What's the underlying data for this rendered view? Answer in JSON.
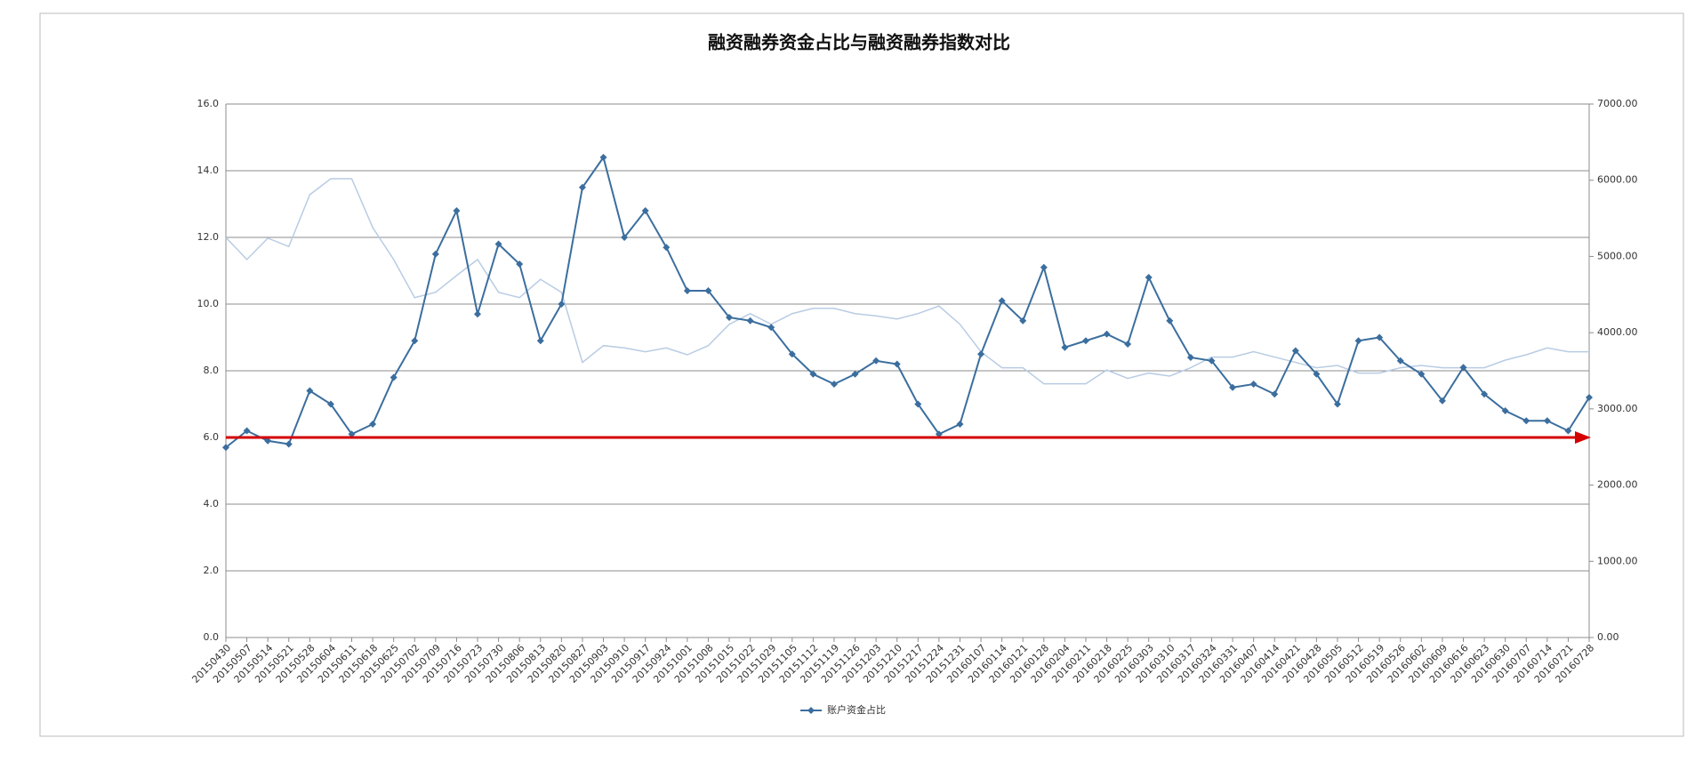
{
  "chart_data": {
    "type": "line",
    "title": "融资融券资金占比与融资融券指数对比",
    "categories": [
      "20150430",
      "20150507",
      "20150514",
      "20150521",
      "20150528",
      "20150604",
      "20150611",
      "20150618",
      "20150625",
      "20150702",
      "20150709",
      "20150716",
      "20150723",
      "20150730",
      "20150806",
      "20150813",
      "20150820",
      "20150827",
      "20150903",
      "20150910",
      "20150917",
      "20150924",
      "20151001",
      "20151008",
      "20151015",
      "20151022",
      "20151029",
      "20151105",
      "20151112",
      "20151119",
      "20151126",
      "20151203",
      "20151210",
      "20151217",
      "20151224",
      "20151231",
      "20160107",
      "20160114",
      "20160121",
      "20160128",
      "20160204",
      "20160211",
      "20160218",
      "20160225",
      "20160303",
      "20160310",
      "20160317",
      "20160324",
      "20160331",
      "20160407",
      "20160414",
      "20160421",
      "20160428",
      "20160505",
      "20160512",
      "20160519",
      "20160526",
      "20160602",
      "20160609",
      "20160616",
      "20160623",
      "20160630",
      "20160707",
      "20160714",
      "20160721",
      "20160728"
    ],
    "series": [
      {
        "name": "账户资金占比",
        "color": "#3b6e9e",
        "marker": "diamond",
        "values": [
          5.7,
          6.2,
          5.9,
          5.8,
          7.4,
          7.0,
          6.1,
          6.4,
          7.8,
          8.9,
          11.5,
          12.8,
          9.7,
          11.8,
          11.2,
          8.9,
          10.0,
          13.5,
          14.4,
          12.0,
          12.8,
          11.7,
          10.4,
          10.4,
          9.6,
          9.5,
          9.3,
          8.5,
          7.9,
          7.6,
          7.9,
          8.3,
          8.2,
          7.0,
          6.1,
          6.4,
          8.5,
          10.1,
          9.5,
          11.1,
          8.7,
          8.9,
          9.1,
          8.8,
          10.8,
          9.5,
          8.4,
          8.3,
          7.5,
          7.6,
          7.3,
          8.6,
          7.9,
          7.0,
          8.9,
          9.0,
          8.3,
          7.9,
          7.1,
          8.1,
          7.3,
          6.8,
          6.5,
          6.5,
          6.2,
          7.2
        ]
      },
      {
        "color": "#b8cce4",
        "axis": "y2",
        "values": [
          5250,
          4960,
          5240,
          5130,
          5810,
          6020,
          6020,
          5380,
          4960,
          4460,
          4530,
          4750,
          4960,
          4530,
          4460,
          4700,
          4530,
          3610,
          3830,
          3800,
          3750,
          3800,
          3710,
          3830,
          4110,
          4250,
          4110,
          4250,
          4320,
          4320,
          4250,
          4220,
          4180,
          4250,
          4350,
          4110,
          3750,
          3540,
          3540,
          3330,
          3330,
          3330,
          3510,
          3400,
          3470,
          3430,
          3540,
          3680,
          3680,
          3750,
          3680,
          3610,
          3540,
          3570,
          3470,
          3470,
          3540,
          3570,
          3540,
          3540,
          3540,
          3640,
          3710,
          3800,
          3750,
          3750
        ]
      }
    ],
    "ylim": [
      0,
      16
    ],
    "yticks": [
      {
        "value": 0,
        "label": "0.0"
      },
      {
        "value": 2,
        "label": "2.0"
      },
      {
        "value": 4,
        "label": "4.0"
      },
      {
        "value": 6,
        "label": "6.0"
      },
      {
        "value": 8,
        "label": "8.0"
      },
      {
        "value": 10,
        "label": "10.0"
      },
      {
        "value": 12,
        "label": "12.0"
      },
      {
        "value": 14,
        "label": "14.0"
      },
      {
        "value": 16,
        "label": "16.0"
      }
    ],
    "y2lim": [
      0,
      7000
    ],
    "y2ticks": [
      {
        "value": 0,
        "label": "0.00"
      },
      {
        "value": 1000,
        "label": "1000.00"
      },
      {
        "value": 2000,
        "label": "2000.00"
      },
      {
        "value": 3000,
        "label": "3000.00"
      },
      {
        "value": 4000,
        "label": "4000.00"
      },
      {
        "value": 5000,
        "label": "5000.00"
      },
      {
        "value": 6000,
        "label": "6000.00"
      },
      {
        "value": 7000,
        "label": "7000.00"
      }
    ],
    "grid": true,
    "legend": "bottom",
    "reference_arrow": {
      "value": 6,
      "color": "#d40000"
    }
  }
}
